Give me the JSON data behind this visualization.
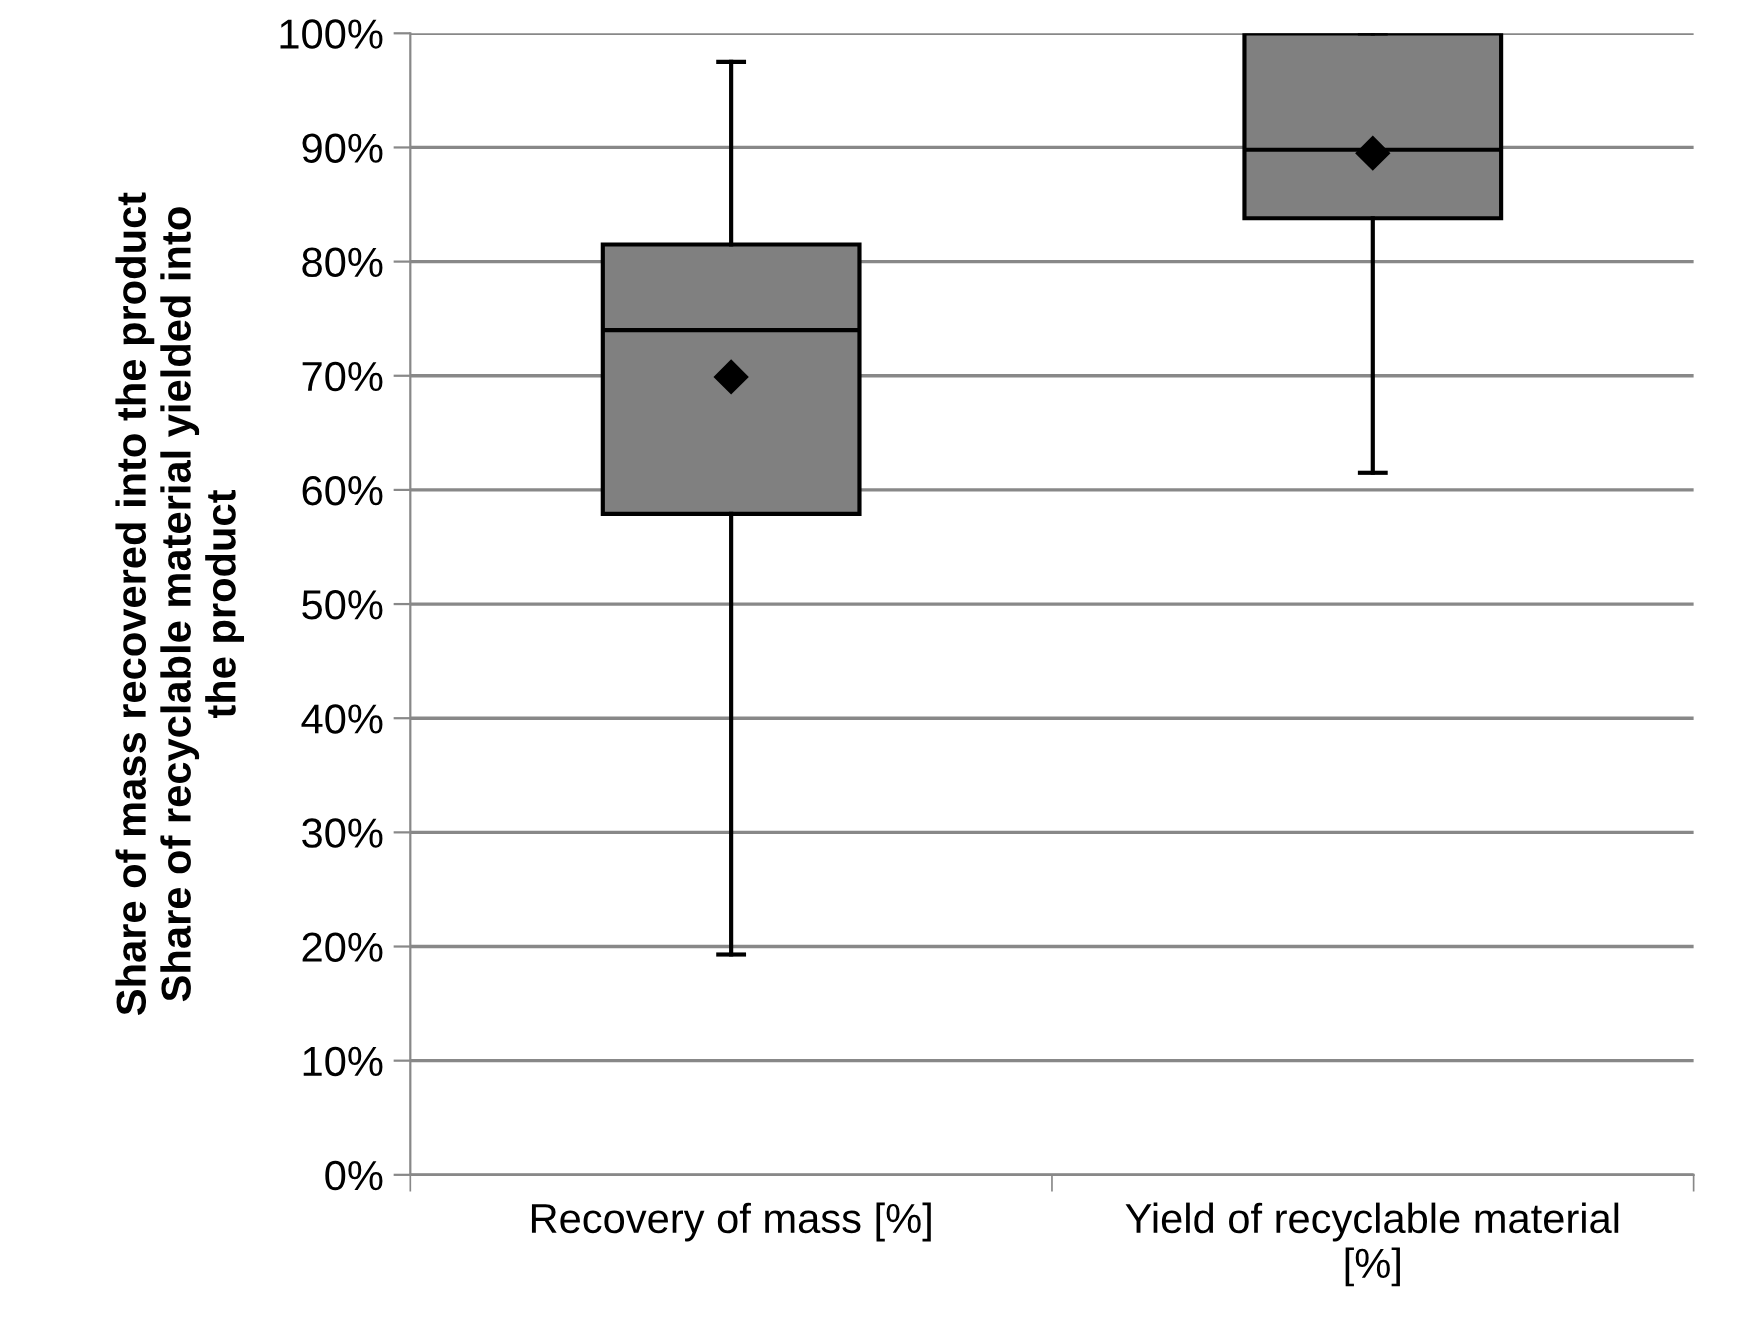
{
  "chart_data": {
    "type": "box",
    "ylabel": "Share of mass recovered into the product\nShare of recyclable material yielded into\nthe product",
    "categories": [
      "Recovery of mass [%]",
      "Yield of recyclable material\n[%]"
    ],
    "boxes": [
      {
        "low": 19.3,
        "q1": 57.9,
        "median": 74.0,
        "q3": 81.5,
        "high": 97.5,
        "mean": 69.9
      },
      {
        "low": 61.5,
        "q1": 83.8,
        "median": 89.8,
        "q3": 100,
        "high": 100,
        "mean": 89.5
      }
    ],
    "color": "#808080",
    "ylim": [
      0,
      100
    ],
    "yticks": [
      {
        "value": 0,
        "label": "0%"
      },
      {
        "value": 10,
        "label": "10%"
      },
      {
        "value": 20,
        "label": "20%"
      },
      {
        "value": 30,
        "label": "30%"
      },
      {
        "value": 40,
        "label": "40%"
      },
      {
        "value": 50,
        "label": "50%"
      },
      {
        "value": 60,
        "label": "60%"
      },
      {
        "value": 70,
        "label": "70%"
      },
      {
        "value": 80,
        "label": "80%"
      },
      {
        "value": 90,
        "label": "90%"
      },
      {
        "value": 100,
        "label": "100%"
      }
    ],
    "grid": "y",
    "marker": "diamond"
  }
}
